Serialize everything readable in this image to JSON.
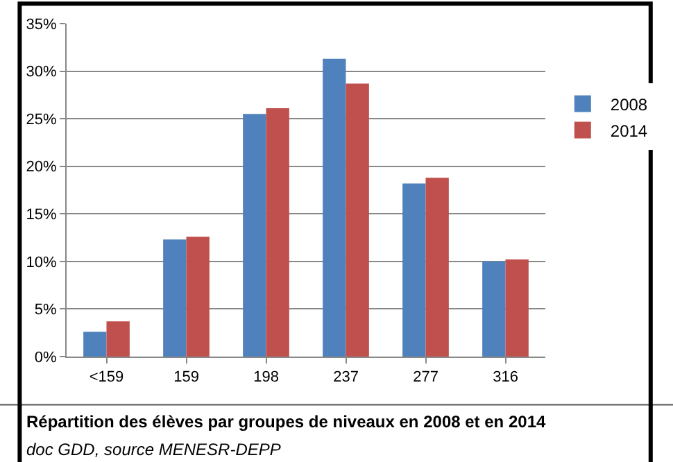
{
  "chart_data": {
    "type": "bar",
    "title": "Répartition des élèves par groupes de niveaux en 2008 et en 2014",
    "annotations": [
      "doc GDD, source MENESR-DEPP"
    ],
    "categories": [
      "<159",
      "159",
      "198",
      "237",
      "277",
      "316"
    ],
    "series": [
      {
        "name": "2008",
        "color": "#4f81bd",
        "values": [
          2.6,
          12.3,
          25.5,
          31.3,
          18.2,
          10.0
        ]
      },
      {
        "name": "2014",
        "color": "#c0504d",
        "values": [
          3.7,
          12.6,
          26.1,
          28.7,
          18.8,
          10.2
        ]
      }
    ],
    "ylim": [
      0,
      35
    ],
    "yticks": [
      {
        "value": 0,
        "label": "0%"
      },
      {
        "value": 5,
        "label": "5%"
      },
      {
        "value": 10,
        "label": "10%"
      },
      {
        "value": 15,
        "label": "15%"
      },
      {
        "value": 20,
        "label": "20%"
      },
      {
        "value": 25,
        "label": "25%"
      },
      {
        "value": 30,
        "label": "30%"
      },
      {
        "value": 35,
        "label": "35%"
      }
    ],
    "grid": "y",
    "legend": "top right"
  }
}
